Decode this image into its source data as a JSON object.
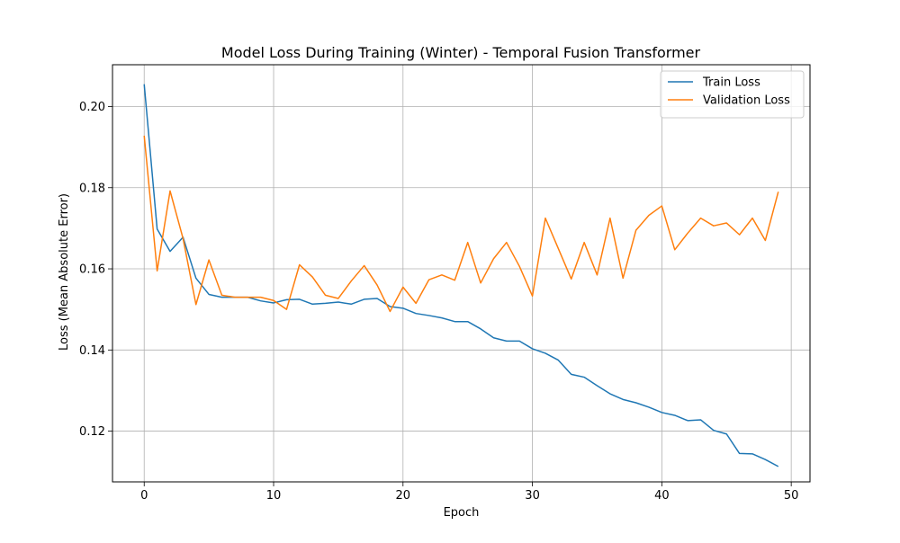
{
  "chart_data": {
    "type": "line",
    "title": "Model Loss During Training (Winter) - Temporal Fusion Transformer",
    "xlabel": "Epoch",
    "ylabel": "Loss (Mean Absolute Error)",
    "xlim": [
      -2.45,
      51.45
    ],
    "ylim": [
      0.1075,
      0.2103
    ],
    "xticks": [
      0,
      10,
      20,
      30,
      40,
      50
    ],
    "yticks": [
      0.12,
      0.14,
      0.16,
      0.18,
      0.2
    ],
    "grid": true,
    "legend_position": "top-right",
    "x": [
      0,
      1,
      2,
      3,
      4,
      5,
      6,
      7,
      8,
      9,
      10,
      11,
      12,
      13,
      14,
      15,
      16,
      17,
      18,
      19,
      20,
      21,
      22,
      23,
      24,
      25,
      26,
      27,
      28,
      29,
      30,
      31,
      32,
      33,
      34,
      35,
      36,
      37,
      38,
      39,
      40,
      41,
      42,
      43,
      44,
      45,
      46,
      47,
      48,
      49
    ],
    "series": [
      {
        "name": "Train Loss",
        "color": "#1f77b4",
        "values": [
          0.2055,
          0.1698,
          0.1643,
          0.1678,
          0.1577,
          0.1537,
          0.153,
          0.153,
          0.153,
          0.1521,
          0.1516,
          0.1524,
          0.1525,
          0.1513,
          0.1515,
          0.1518,
          0.1513,
          0.1525,
          0.1527,
          0.1507,
          0.1503,
          0.149,
          0.1485,
          0.1479,
          0.147,
          0.147,
          0.1452,
          0.143,
          0.1422,
          0.1422,
          0.1403,
          0.1392,
          0.1375,
          0.134,
          0.1333,
          0.1312,
          0.1292,
          0.1278,
          0.127,
          0.1259,
          0.1246,
          0.1239,
          0.1226,
          0.1228,
          0.1202,
          0.1193,
          0.1145,
          0.1144,
          0.113,
          0.1113
        ]
      },
      {
        "name": "Validation Loss",
        "color": "#ff7f0e",
        "values": [
          0.1928,
          0.1595,
          0.1792,
          0.1675,
          0.1512,
          0.1622,
          0.1535,
          0.153,
          0.153,
          0.153,
          0.1522,
          0.15,
          0.161,
          0.158,
          0.1535,
          0.1527,
          0.157,
          0.1608,
          0.156,
          0.1495,
          0.1555,
          0.1515,
          0.1573,
          0.1585,
          0.1572,
          0.1665,
          0.1565,
          0.1625,
          0.1665,
          0.1606,
          0.1533,
          0.1725,
          0.165,
          0.1575,
          0.1665,
          0.1585,
          0.1725,
          0.1577,
          0.1695,
          0.1732,
          0.1755,
          0.1647,
          0.1688,
          0.1725,
          0.1706,
          0.1713,
          0.1684,
          0.1725,
          0.167,
          0.179
        ]
      }
    ]
  }
}
